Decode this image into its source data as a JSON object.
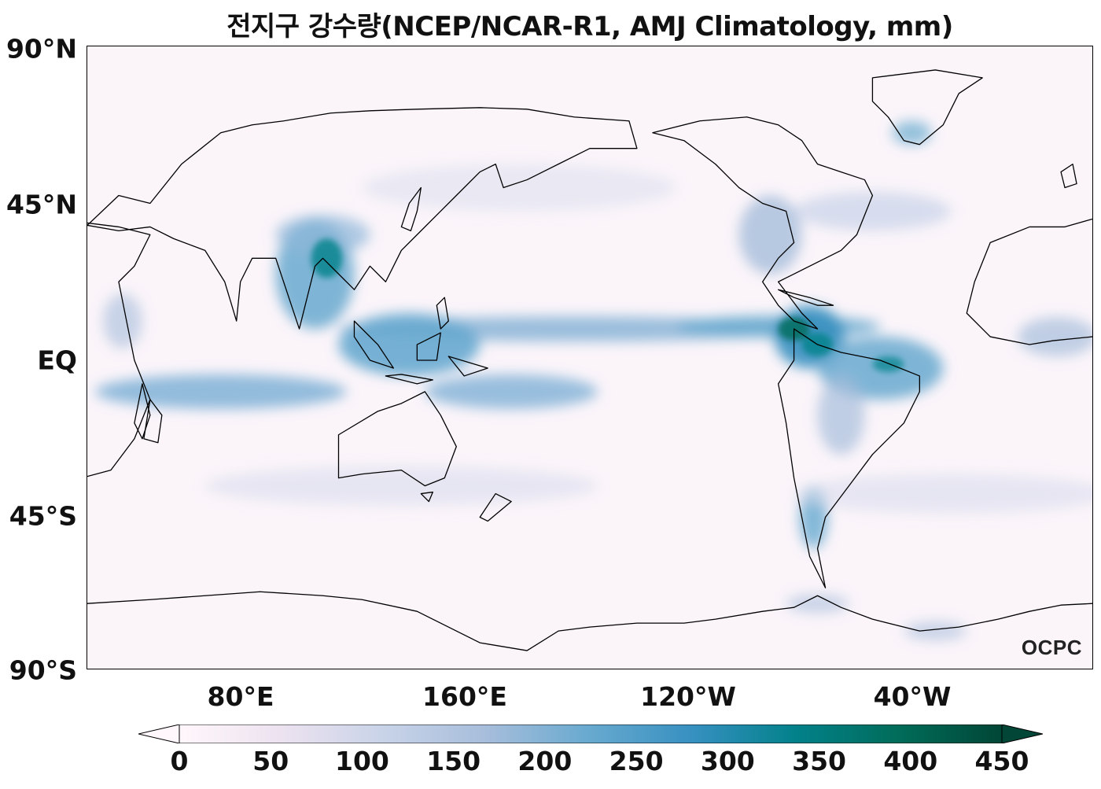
{
  "title": "전지구 강수량(NCEP/NCAR-R1, AMJ Climatology, mm)",
  "lat_labels": [
    "90°N",
    "45°N",
    "EQ",
    "45°S",
    "90°S"
  ],
  "lon_labels": [
    "80°E",
    "160°E",
    "120°W",
    "40°W"
  ],
  "colorbar": {
    "ticks": [
      "0",
      "50",
      "100",
      "150",
      "200",
      "250",
      "300",
      "350",
      "400",
      "450"
    ],
    "colors": [
      "#fff7fb",
      "#ece2f0",
      "#c8d3e8",
      "#a6bddb",
      "#67a9cf",
      "#3690c0",
      "#02818a",
      "#016c59",
      "#014636"
    ],
    "extend": "both"
  },
  "logo": "OCPC",
  "colors": {
    "high_precip": "#016c59",
    "medium_precip": "#3690c0",
    "low_precip": "#fbf5fa"
  }
}
